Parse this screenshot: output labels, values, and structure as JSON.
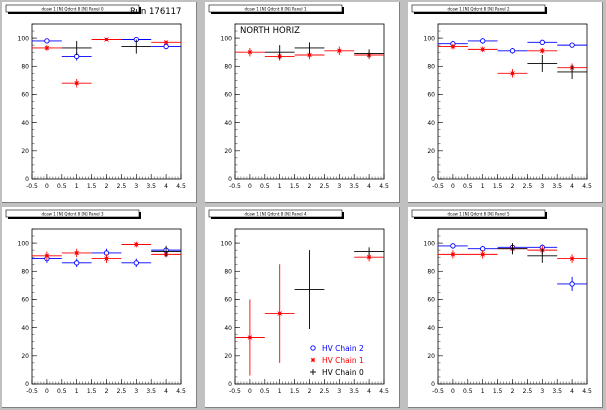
{
  "colors": {
    "pad_fill": "#ffffff",
    "background": "#c0c0c0",
    "frame": "#000000",
    "series_chain2": "#0000ff",
    "series_chain1": "#ff0000",
    "series_chain0": "#000000"
  },
  "axes": {
    "x": {
      "min": -0.5,
      "max": 4.5,
      "ticks": [
        "-0.5",
        "0",
        "0.5",
        "1",
        "1.5",
        "2",
        "2.5",
        "3",
        "3.5",
        "4",
        "4.5"
      ],
      "tick_values": [
        -0.5,
        0,
        0.5,
        1,
        1.5,
        2,
        2.5,
        3,
        3.5,
        4,
        4.5
      ]
    },
    "y": {
      "min": 0,
      "max": 110,
      "ticks": [
        "0",
        "20",
        "40",
        "60",
        "80",
        "100"
      ],
      "tick_values": [
        0,
        20,
        40,
        60,
        80,
        100
      ]
    }
  },
  "legend": {
    "placement": "bottom-right of panel 5",
    "entries": [
      {
        "label": "HV Chain 2",
        "marker": "circle",
        "color": "#0000ff"
      },
      {
        "label": "HV Chain 1",
        "marker": "star",
        "color": "#ff0000"
      },
      {
        "label": "HV Chain 0",
        "marker": "plus",
        "color": "#000000"
      }
    ]
  },
  "chart_data": [
    {
      "type": "scatter",
      "title": "Run 176117",
      "header": "dcaw 1 [N] Qdcnt 8 [N] Panel 0",
      "xlim": [
        -0.5,
        4.5
      ],
      "ylim": [
        0,
        110
      ],
      "series": [
        {
          "name": "HV Chain 2",
          "color": "#0000ff",
          "marker": "circle",
          "points": [
            {
              "x": 0,
              "y": 98,
              "ex": 0.5,
              "ey": 1.5
            },
            {
              "x": 1,
              "y": 87,
              "ex": 0.5,
              "ey": 3
            },
            {
              "x": 3,
              "y": 99,
              "ex": 0.5,
              "ey": 1
            },
            {
              "x": 4,
              "y": 94,
              "ex": 0.5,
              "ey": 1
            }
          ]
        },
        {
          "name": "HV Chain 1",
          "color": "#ff0000",
          "marker": "star",
          "points": [
            {
              "x": 0,
              "y": 93,
              "ex": 0.5,
              "ey": 2
            },
            {
              "x": 1,
              "y": 68,
              "ex": 0.5,
              "ey": 3
            },
            {
              "x": 2,
              "y": 99,
              "ex": 0.5,
              "ey": 1
            },
            {
              "x": 4,
              "y": 97,
              "ex": 0.5,
              "ey": 1
            }
          ]
        },
        {
          "name": "HV Chain 0",
          "color": "#000000",
          "marker": "plus",
          "points": [
            {
              "x": 1,
              "y": 93,
              "ex": 0.5,
              "ey": 5
            },
            {
              "x": 3,
              "y": 94,
              "ex": 0.5,
              "ey": 5
            }
          ]
        }
      ]
    },
    {
      "type": "scatter",
      "title": "NORTH HORIZ",
      "header": "dcaw 1 [N] Qdcnt 8 [N] Panel 1",
      "xlim": [
        -0.5,
        4.5
      ],
      "ylim": [
        0,
        110
      ],
      "series": [
        {
          "name": "HV Chain 1",
          "color": "#ff0000",
          "marker": "star",
          "points": [
            {
              "x": 0,
              "y": 90,
              "ex": 0.5,
              "ey": 3
            },
            {
              "x": 1,
              "y": 87,
              "ex": 0.5,
              "ey": 3
            },
            {
              "x": 2,
              "y": 88,
              "ex": 0.5,
              "ey": 3
            },
            {
              "x": 3,
              "y": 91,
              "ex": 0.5,
              "ey": 3
            },
            {
              "x": 4,
              "y": 88,
              "ex": 0.5,
              "ey": 3
            }
          ]
        },
        {
          "name": "HV Chain 0",
          "color": "#000000",
          "marker": "plus",
          "points": [
            {
              "x": 1,
              "y": 90,
              "ex": 0.5,
              "ey": 5
            },
            {
              "x": 2,
              "y": 93,
              "ex": 0.5,
              "ey": 4
            },
            {
              "x": 4,
              "y": 89,
              "ex": 0.5,
              "ey": 3
            }
          ]
        }
      ]
    },
    {
      "type": "scatter",
      "title": "",
      "header": "dcaw 1 [N] Qdcnt 8 [N] Panel 2",
      "xlim": [
        -0.5,
        4.5
      ],
      "ylim": [
        0,
        110
      ],
      "series": [
        {
          "name": "HV Chain 2",
          "color": "#0000ff",
          "marker": "circle",
          "points": [
            {
              "x": 0,
              "y": 96,
              "ex": 0.5,
              "ey": 2
            },
            {
              "x": 1,
              "y": 98,
              "ex": 0.5,
              "ey": 2
            },
            {
              "x": 2,
              "y": 91,
              "ex": 0.5,
              "ey": 2
            },
            {
              "x": 3,
              "y": 97,
              "ex": 0.5,
              "ey": 1
            },
            {
              "x": 4,
              "y": 95,
              "ex": 0.5,
              "ey": 1
            }
          ]
        },
        {
          "name": "HV Chain 1",
          "color": "#ff0000",
          "marker": "star",
          "points": [
            {
              "x": 0,
              "y": 94,
              "ex": 0.5,
              "ey": 2
            },
            {
              "x": 1,
              "y": 92,
              "ex": 0.5,
              "ey": 2
            },
            {
              "x": 2,
              "y": 75,
              "ex": 0.5,
              "ey": 3
            },
            {
              "x": 3,
              "y": 91,
              "ex": 0.5,
              "ey": 2
            },
            {
              "x": 4,
              "y": 79,
              "ex": 0.5,
              "ey": 3
            }
          ]
        },
        {
          "name": "HV Chain 0",
          "color": "#000000",
          "marker": "plus",
          "points": [
            {
              "x": 3,
              "y": 82,
              "ex": 0.5,
              "ey": 6
            },
            {
              "x": 4,
              "y": 76,
              "ex": 0.5,
              "ey": 5
            }
          ]
        }
      ]
    },
    {
      "type": "scatter",
      "title": "",
      "header": "dcaw 1 [N] Qdcnt 8 [N] Panel 3",
      "xlim": [
        -0.5,
        4.5
      ],
      "ylim": [
        0,
        110
      ],
      "series": [
        {
          "name": "HV Chain 2",
          "color": "#0000ff",
          "marker": "circle",
          "points": [
            {
              "x": 0,
              "y": 89,
              "ex": 0.5,
              "ey": 3
            },
            {
              "x": 1,
              "y": 86,
              "ex": 0.5,
              "ey": 3
            },
            {
              "x": 2,
              "y": 93,
              "ex": 0.5,
              "ey": 3
            },
            {
              "x": 3,
              "y": 86,
              "ex": 0.5,
              "ey": 3
            },
            {
              "x": 4,
              "y": 95,
              "ex": 0.5,
              "ey": 2
            }
          ]
        },
        {
          "name": "HV Chain 1",
          "color": "#ff0000",
          "marker": "star",
          "points": [
            {
              "x": 0,
              "y": 91,
              "ex": 0.5,
              "ey": 3
            },
            {
              "x": 1,
              "y": 93,
              "ex": 0.5,
              "ey": 3
            },
            {
              "x": 2,
              "y": 89,
              "ex": 0.5,
              "ey": 3
            },
            {
              "x": 3,
              "y": 99,
              "ex": 0.5,
              "ey": 2
            },
            {
              "x": 4,
              "y": 92,
              "ex": 0.5,
              "ey": 2
            }
          ]
        },
        {
          "name": "HV Chain 0",
          "color": "#000000",
          "marker": "plus",
          "points": [
            {
              "x": 4,
              "y": 94,
              "ex": 0.5,
              "ey": 4
            }
          ]
        }
      ]
    },
    {
      "type": "scatter",
      "title": "",
      "header": "dcaw 1 [N] Qdcnt 8 [N] Panel 4",
      "xlim": [
        -0.5,
        4.5
      ],
      "ylim": [
        0,
        110
      ],
      "series": [
        {
          "name": "HV Chain 1",
          "color": "#ff0000",
          "marker": "star",
          "points": [
            {
              "x": 0,
              "y": 33,
              "ex": 0.5,
              "ey": 27
            },
            {
              "x": 1,
              "y": 50,
              "ex": 0.5,
              "ey": 35
            },
            {
              "x": 4,
              "y": 90,
              "ex": 0.5,
              "ey": 3
            }
          ]
        },
        {
          "name": "HV Chain 0",
          "color": "#000000",
          "marker": "plus",
          "points": [
            {
              "x": 2,
              "y": 67,
              "ex": 0.5,
              "ey": 28
            },
            {
              "x": 4,
              "y": 94,
              "ex": 0.5,
              "ey": 3
            }
          ]
        }
      ]
    },
    {
      "type": "scatter",
      "title": "",
      "header": "dcaw 1 [N] Qdcnt 8 [N] Panel 5",
      "xlim": [
        -0.5,
        4.5
      ],
      "ylim": [
        0,
        110
      ],
      "series": [
        {
          "name": "HV Chain 2",
          "color": "#0000ff",
          "marker": "circle",
          "points": [
            {
              "x": 0,
              "y": 98,
              "ex": 0.5,
              "ey": 2
            },
            {
              "x": 1,
              "y": 96,
              "ex": 0.5,
              "ey": 2
            },
            {
              "x": 2,
              "y": 97,
              "ex": 0.5,
              "ey": 2
            },
            {
              "x": 3,
              "y": 97,
              "ex": 0.5,
              "ey": 2
            },
            {
              "x": 4,
              "y": 71,
              "ex": 0.5,
              "ey": 5
            }
          ]
        },
        {
          "name": "HV Chain 1",
          "color": "#ff0000",
          "marker": "star",
          "points": [
            {
              "x": 0,
              "y": 92,
              "ex": 0.5,
              "ey": 3
            },
            {
              "x": 1,
              "y": 92,
              "ex": 0.5,
              "ey": 3
            },
            {
              "x": 2,
              "y": 96,
              "ex": 0.5,
              "ey": 3
            },
            {
              "x": 3,
              "y": 95,
              "ex": 0.5,
              "ey": 3
            },
            {
              "x": 4,
              "y": 89,
              "ex": 0.5,
              "ey": 3
            }
          ]
        },
        {
          "name": "HV Chain 0",
          "color": "#000000",
          "marker": "plus",
          "points": [
            {
              "x": 2,
              "y": 96,
              "ex": 0.5,
              "ey": 4
            },
            {
              "x": 3,
              "y": 91,
              "ex": 0.5,
              "ey": 5
            }
          ]
        }
      ]
    }
  ]
}
